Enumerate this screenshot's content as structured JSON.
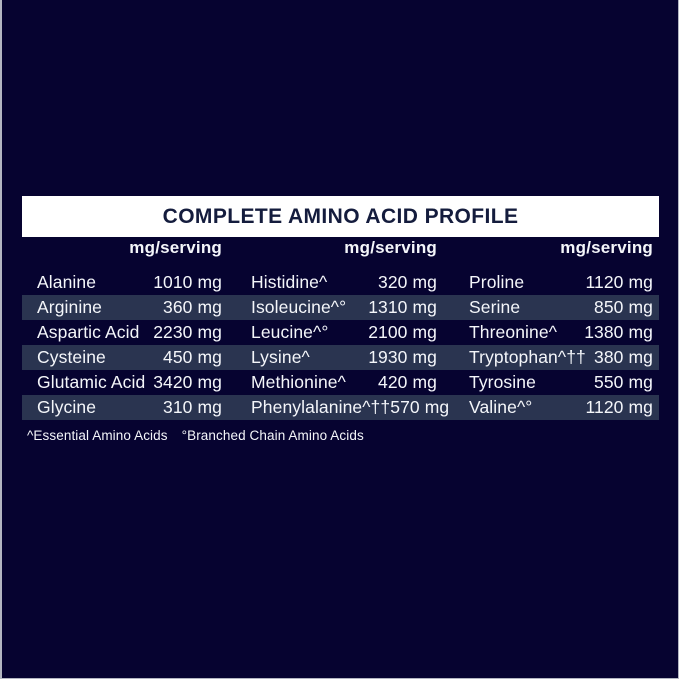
{
  "page": {
    "title": "COMPLETE AMINO ACID PROFILE",
    "colors": {
      "background": "#060330",
      "stripe": "#2a3450",
      "title_bar_bg": "#ffffff",
      "title_text": "#141c3d",
      "body_text": "#f4f6fa"
    }
  },
  "table": {
    "unit_header": "mg/serving",
    "rows": [
      {
        "cells": [
          {
            "name": "Alanine",
            "value": "1010 mg"
          },
          {
            "name": "Histidine^",
            "value": "320 mg"
          },
          {
            "name": "Proline",
            "value": "1120 mg"
          }
        ]
      },
      {
        "cells": [
          {
            "name": "Arginine",
            "value": "360 mg"
          },
          {
            "name": "Isoleucine^°",
            "value": "1310 mg"
          },
          {
            "name": "Serine",
            "value": "850 mg"
          }
        ]
      },
      {
        "cells": [
          {
            "name": "Aspartic Acid",
            "value": "2230 mg"
          },
          {
            "name": "Leucine^°",
            "value": "2100 mg"
          },
          {
            "name": "Threonine^",
            "value": "1380 mg"
          }
        ]
      },
      {
        "cells": [
          {
            "name": "Cysteine",
            "value": "450 mg"
          },
          {
            "name": "Lysine^",
            "value": "1930 mg"
          },
          {
            "name": "Tryptophan^††",
            "value": "380 mg"
          }
        ]
      },
      {
        "cells": [
          {
            "name": "Glutamic Acid",
            "value": "3420 mg"
          },
          {
            "name": "Methionine^",
            "value": "420 mg"
          },
          {
            "name": "Tyrosine",
            "value": "550 mg"
          }
        ]
      },
      {
        "cells": [
          {
            "name": "Glycine",
            "value": "310 mg"
          },
          {
            "name": "Phenylalanine^††",
            "value": "570 mg"
          },
          {
            "name": "Valine^°",
            "value": "1120 mg"
          }
        ]
      }
    ],
    "footnotes": [
      "^Essential Amino Acids",
      "°Branched Chain Amino Acids"
    ]
  }
}
